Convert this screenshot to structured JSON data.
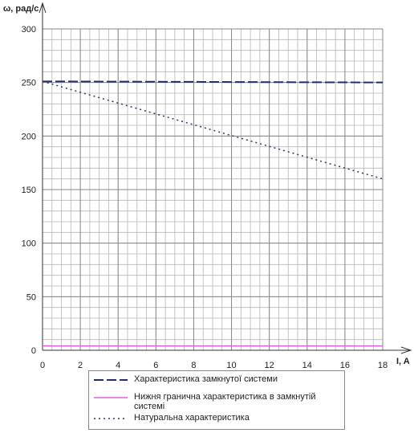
{
  "chart_data": {
    "type": "line",
    "x_label": "I, A",
    "y_label": "ω, рад/с",
    "x": [
      0,
      18
    ],
    "series": [
      {
        "name": "Характеристика замкнутої системи",
        "color": "#1f2f6e",
        "style": "dashed",
        "values": [
          251,
          250
        ]
      },
      {
        "name": "Нижня гранична характеристика в  замкнутій системі",
        "color": "#e060e0",
        "style": "solid",
        "values": [
          4,
          4
        ]
      },
      {
        "name": "Натуральна характеристика",
        "color": "#2a3a6a",
        "style": "dotted",
        "values": [
          251,
          160
        ]
      }
    ],
    "xlim": [
      0,
      18
    ],
    "xticks": [
      0,
      2,
      4,
      6,
      8,
      10,
      12,
      14,
      16,
      18
    ],
    "ylim": [
      0,
      300
    ],
    "yticks": [
      0,
      50,
      100,
      150,
      200,
      250,
      300
    ],
    "grid": true,
    "minor_grid": {
      "x": 0.5,
      "y": 10
    }
  }
}
